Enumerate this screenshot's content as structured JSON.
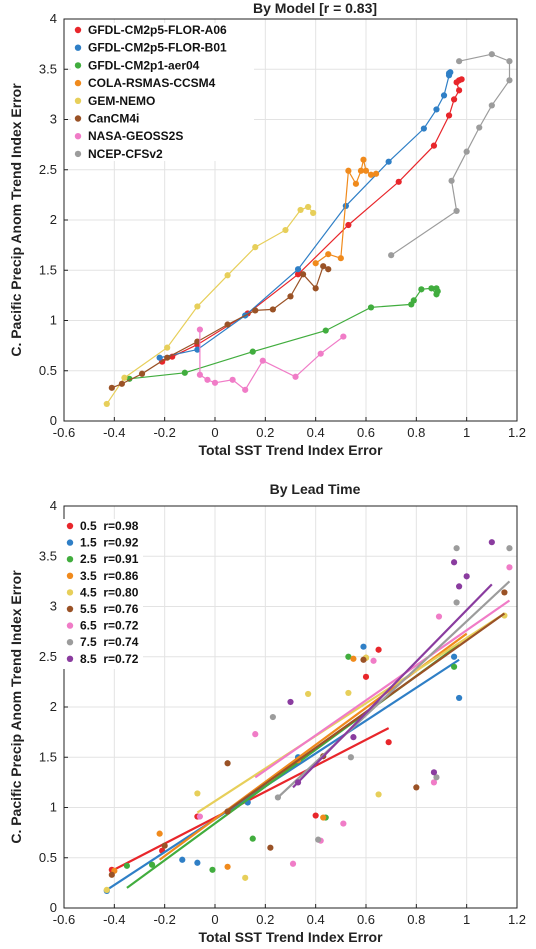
{
  "chart_data": [
    {
      "type": "line",
      "title": "By Model  [r = 0.83]",
      "xlabel": "Total SST Trend Index Error",
      "ylabel": "C. Pacific Precip Anom Trend Index Error",
      "xlim": [
        -0.6,
        1.2
      ],
      "ylim": [
        0,
        4
      ],
      "xticks": [
        "-0.6",
        "-0.4",
        "-0.2",
        "0",
        "0.2",
        "0.4",
        "0.6",
        "0.8",
        "1",
        "1.2"
      ],
      "yticks": [
        "0",
        "0.5",
        "1",
        "1.5",
        "2",
        "2.5",
        "3",
        "3.5",
        "4"
      ],
      "grid": true,
      "legend_position": "top-left",
      "series": [
        {
          "name": "GFDL-CM2p5-FLOR-A06",
          "color": "#e8262b",
          "points": [
            [
              -0.21,
              0.59
            ],
            [
              -0.17,
              0.64
            ],
            [
              -0.07,
              0.76
            ],
            [
              0.13,
              1.07
            ],
            [
              0.33,
              1.46
            ],
            [
              0.53,
              1.95
            ],
            [
              0.73,
              2.38
            ],
            [
              0.87,
              2.74
            ],
            [
              0.93,
              3.04
            ],
            [
              0.95,
              3.2
            ],
            [
              0.97,
              3.29
            ],
            [
              0.96,
              3.37
            ],
            [
              0.97,
              3.39
            ],
            [
              0.98,
              3.4
            ]
          ]
        },
        {
          "name": "GFDL-CM2p5-FLOR-B01",
          "color": "#2f7fc6",
          "points": [
            [
              -0.22,
              0.63
            ],
            [
              -0.07,
              0.71
            ],
            [
              0.12,
              1.05
            ],
            [
              0.33,
              1.51
            ],
            [
              0.52,
              2.14
            ],
            [
              0.69,
              2.58
            ],
            [
              0.83,
              2.91
            ],
            [
              0.88,
              3.1
            ],
            [
              0.91,
              3.24
            ],
            [
              0.93,
              3.44
            ],
            [
              0.935,
              3.47
            ],
            [
              0.93,
              3.46
            ]
          ]
        },
        {
          "name": "GFDL-CM2p1-aer04",
          "color": "#41ad3e",
          "points": [
            [
              -0.34,
              0.42
            ],
            [
              -0.12,
              0.48
            ],
            [
              0.15,
              0.69
            ],
            [
              0.44,
              0.9
            ],
            [
              0.62,
              1.13
            ],
            [
              0.78,
              1.16
            ],
            [
              0.79,
              1.2
            ],
            [
              0.82,
              1.31
            ],
            [
              0.86,
              1.32
            ],
            [
              0.88,
              1.26
            ],
            [
              0.885,
              1.29
            ],
            [
              0.88,
              1.32
            ]
          ]
        },
        {
          "name": "COLA-RSMAS-CCSM4",
          "color": "#f08a1c",
          "points": [
            [
              0.4,
              1.57
            ],
            [
              0.45,
              1.66
            ],
            [
              0.5,
              1.62
            ],
            [
              0.53,
              2.49
            ],
            [
              0.56,
              2.36
            ],
            [
              0.58,
              2.49
            ],
            [
              0.59,
              2.6
            ],
            [
              0.6,
              2.49
            ],
            [
              0.62,
              2.45
            ],
            [
              0.64,
              2.46
            ]
          ]
        },
        {
          "name": "GEM-NEMO",
          "color": "#e7cf5a",
          "points": [
            [
              -0.43,
              0.17
            ],
            [
              -0.36,
              0.43
            ],
            [
              -0.19,
              0.73
            ],
            [
              -0.07,
              1.14
            ],
            [
              0.05,
              1.45
            ],
            [
              0.16,
              1.73
            ],
            [
              0.28,
              1.9
            ],
            [
              0.34,
              2.1
            ],
            [
              0.37,
              2.13
            ],
            [
              0.39,
              2.07
            ]
          ]
        },
        {
          "name": "CanCM4i",
          "color": "#9a5226",
          "points": [
            [
              -0.41,
              0.33
            ],
            [
              -0.37,
              0.37
            ],
            [
              -0.29,
              0.47
            ],
            [
              -0.19,
              0.63
            ],
            [
              -0.07,
              0.79
            ],
            [
              0.05,
              0.96
            ],
            [
              0.16,
              1.1
            ],
            [
              0.23,
              1.11
            ],
            [
              0.3,
              1.24
            ],
            [
              0.35,
              1.46
            ],
            [
              0.4,
              1.32
            ],
            [
              0.43,
              1.54
            ],
            [
              0.45,
              1.51
            ]
          ]
        },
        {
          "name": "NASA-GEOSS2S",
          "color": "#f07cc7",
          "points": [
            [
              -0.06,
              0.91
            ],
            [
              -0.06,
              0.46
            ],
            [
              -0.03,
              0.41
            ],
            [
              0.0,
              0.38
            ],
            [
              0.07,
              0.41
            ],
            [
              0.12,
              0.31
            ],
            [
              0.19,
              0.6
            ],
            [
              0.32,
              0.44
            ],
            [
              0.42,
              0.67
            ],
            [
              0.51,
              0.84
            ]
          ]
        },
        {
          "name": "NCEP-CFSv2",
          "color": "#9c9c9c",
          "points": [
            [
              0.7,
              1.65
            ],
            [
              0.96,
              2.09
            ],
            [
              0.94,
              2.39
            ],
            [
              1.0,
              2.68
            ],
            [
              1.05,
              2.92
            ],
            [
              1.1,
              3.14
            ],
            [
              1.17,
              3.39
            ],
            [
              1.17,
              3.58
            ],
            [
              1.1,
              3.65
            ],
            [
              0.97,
              3.58
            ]
          ]
        }
      ]
    },
    {
      "type": "scatter",
      "title": "By Lead Time",
      "xlabel": "Total SST Trend Index Error",
      "ylabel": "C. Pacific Precip Anom Trend Index Error",
      "xlim": [
        -0.6,
        1.2
      ],
      "ylim": [
        0,
        4
      ],
      "xticks": [
        "-0.6",
        "-0.4",
        "-0.2",
        "0",
        "0.2",
        "0.4",
        "0.6",
        "0.8",
        "1",
        "1.2"
      ],
      "yticks": [
        "0",
        "0.5",
        "1",
        "1.5",
        "2",
        "2.5",
        "3",
        "3.5",
        "4"
      ],
      "grid": true,
      "legend_position": "top-left",
      "series": [
        {
          "name": "0.5  r=0.98",
          "color": "#e8262b",
          "points": [
            [
              -0.41,
              0.38
            ],
            [
              -0.21,
              0.57
            ],
            [
              -0.07,
              0.91
            ],
            [
              0.33,
              1.48
            ],
            [
              0.69,
              1.65
            ],
            [
              0.4,
              0.92
            ],
            [
              0.65,
              2.57
            ],
            [
              0.6,
              2.3
            ]
          ],
          "fit": [
            [
              -0.41,
              0.37
            ],
            [
              0.69,
              1.79
            ]
          ]
        },
        {
          "name": "1.5  r=0.92",
          "color": "#2f7fc6",
          "points": [
            [
              -0.43,
              0.17
            ],
            [
              -0.13,
              0.48
            ],
            [
              -0.07,
              0.45
            ],
            [
              0.13,
              1.05
            ],
            [
              0.33,
              1.5
            ],
            [
              0.59,
              2.6
            ],
            [
              0.97,
              2.09
            ],
            [
              0.95,
              2.5
            ]
          ],
          "fit": [
            [
              -0.43,
              0.18
            ],
            [
              0.97,
              2.47
            ]
          ]
        },
        {
          "name": "2.5  r=0.91",
          "color": "#41ad3e",
          "points": [
            [
              -0.35,
              0.42
            ],
            [
              -0.25,
              0.43
            ],
            [
              -0.01,
              0.38
            ],
            [
              0.15,
              0.69
            ],
            [
              0.44,
              0.9
            ],
            [
              0.53,
              2.5
            ],
            [
              0.95,
              2.4
            ]
          ],
          "fit": [
            [
              -0.35,
              0.2
            ],
            [
              0.97,
              2.62
            ]
          ]
        },
        {
          "name": "3.5  r=0.86",
          "color": "#f08a1c",
          "points": [
            [
              -0.4,
              0.37
            ],
            [
              -0.22,
              0.74
            ],
            [
              0.05,
              0.41
            ],
            [
              0.33,
              1.47
            ],
            [
              0.43,
              0.9
            ],
            [
              0.55,
              2.48
            ],
            [
              0.6,
              2.49
            ]
          ],
          "fit": [
            [
              -0.22,
              0.48
            ],
            [
              1.0,
              2.73
            ]
          ]
        },
        {
          "name": "4.5  r=0.80",
          "color": "#e7cf5a",
          "points": [
            [
              -0.43,
              0.18
            ],
            [
              -0.07,
              1.14
            ],
            [
              0.12,
              0.3
            ],
            [
              0.37,
              2.13
            ],
            [
              0.53,
              2.14
            ],
            [
              0.6,
              2.49
            ],
            [
              0.65,
              1.13
            ],
            [
              1.15,
              2.91
            ]
          ],
          "fit": [
            [
              -0.07,
              0.95
            ],
            [
              1.15,
              2.93
            ]
          ]
        },
        {
          "name": "5.5  r=0.76",
          "color": "#9a5226",
          "points": [
            [
              -0.41,
              0.33
            ],
            [
              -0.2,
              0.62
            ],
            [
              0.05,
              0.96
            ],
            [
              0.05,
              1.44
            ],
            [
              0.22,
              0.6
            ],
            [
              0.43,
              1.51
            ],
            [
              0.59,
              2.47
            ],
            [
              0.8,
              1.2
            ],
            [
              1.15,
              3.14
            ]
          ],
          "fit": [
            [
              0.05,
              0.97
            ],
            [
              1.15,
              2.93
            ]
          ]
        },
        {
          "name": "6.5  r=0.72",
          "color": "#f07cc7",
          "points": [
            [
              -0.06,
              0.91
            ],
            [
              0.16,
              1.73
            ],
            [
              0.31,
              0.44
            ],
            [
              0.42,
              0.67
            ],
            [
              0.51,
              0.84
            ],
            [
              0.63,
              2.46
            ],
            [
              0.87,
              1.25
            ],
            [
              0.89,
              2.9
            ],
            [
              1.17,
              3.39
            ]
          ],
          "fit": [
            [
              0.16,
              1.3
            ],
            [
              1.17,
              3.06
            ]
          ]
        },
        {
          "name": "7.5  r=0.74",
          "color": "#9c9c9c",
          "points": [
            [
              0.23,
              1.9
            ],
            [
              0.25,
              1.1
            ],
            [
              0.41,
              0.68
            ],
            [
              0.54,
              1.5
            ],
            [
              0.88,
              1.3
            ],
            [
              0.96,
              3.04
            ],
            [
              1.17,
              3.58
            ],
            [
              0.96,
              3.58
            ]
          ],
          "fit": [
            [
              0.25,
              1.1
            ],
            [
              1.17,
              3.25
            ]
          ]
        },
        {
          "name": "8.5  r=0.72",
          "color": "#8a3c9f",
          "points": [
            [
              0.3,
              2.05
            ],
            [
              0.33,
              1.25
            ],
            [
              0.55,
              1.7
            ],
            [
              0.87,
              1.35
            ],
            [
              0.95,
              3.44
            ],
            [
              1.1,
              3.64
            ],
            [
              1.0,
              3.3
            ],
            [
              0.97,
              3.2
            ]
          ],
          "fit": [
            [
              0.31,
              1.2
            ],
            [
              1.1,
              3.22
            ]
          ]
        }
      ]
    }
  ]
}
